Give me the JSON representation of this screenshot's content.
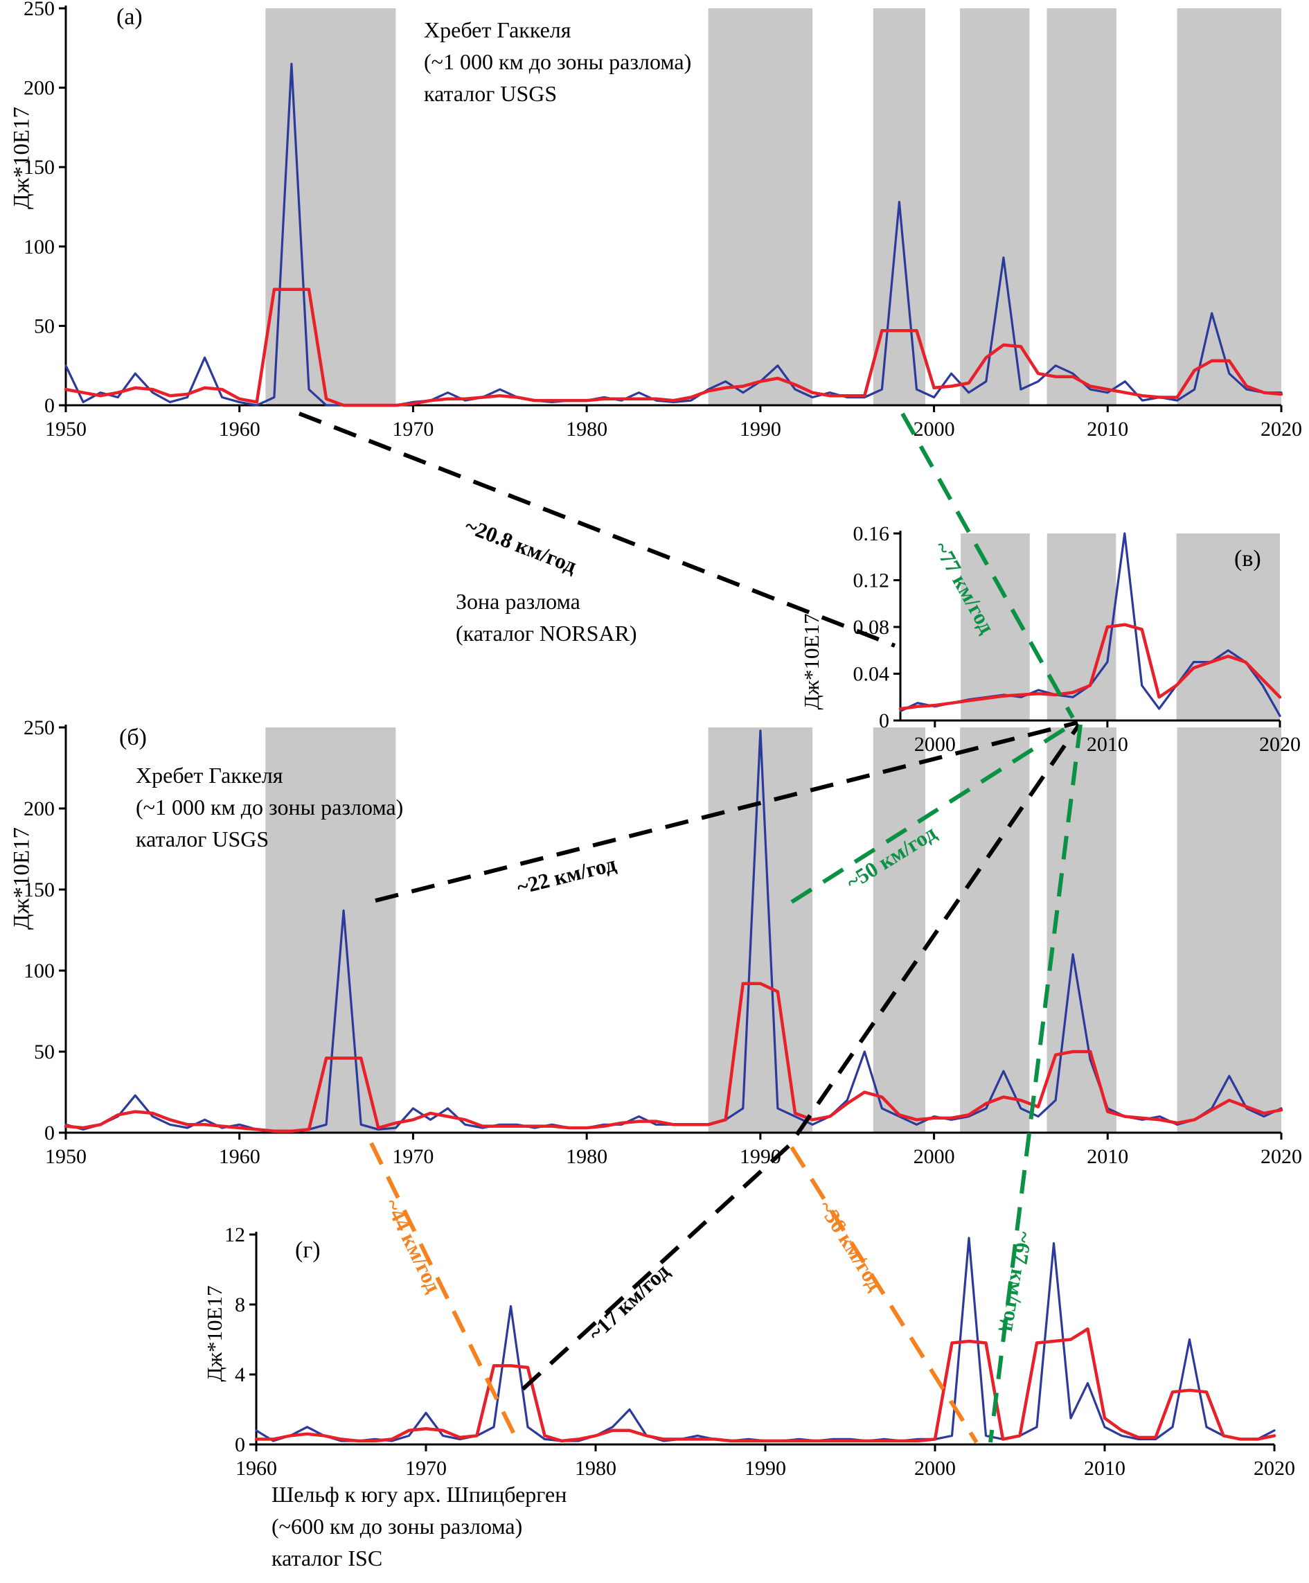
{
  "figure": {
    "colors": {
      "annual_line": "#2b3a9b",
      "smoothed_line": "#e8202a",
      "band": "#c8c8c8",
      "arrow_black": "#000000",
      "arrow_green": "#0a9144",
      "arrow_orange": "#f6821f"
    }
  },
  "chart_data": [
    {
      "id": "a",
      "type": "line",
      "panel_label": "(а)",
      "title_lines": [
        "Хребет Гаккеля",
        "(~1 000 км до зоны разлома)",
        "каталог USGS"
      ],
      "ylabel": "Дж*10E17",
      "x_start": 1950,
      "xlim": [
        1950,
        2020
      ],
      "x_ticks": [
        1950,
        1960,
        1970,
        1980,
        1990,
        2000,
        2010,
        2020
      ],
      "ylim": [
        0,
        250
      ],
      "y_ticks": [
        0,
        50,
        100,
        150,
        200,
        250
      ],
      "grid": false,
      "bands": [
        [
          1961.5,
          1969
        ],
        [
          1987,
          1993
        ],
        [
          1996.5,
          1999.5
        ],
        [
          2001.5,
          2005.5
        ],
        [
          2006.5,
          2010.5
        ],
        [
          2014,
          2020
        ]
      ],
      "series": [
        {
          "name": "annual",
          "color": "#2b3a9b",
          "values": [
            25,
            2,
            8,
            5,
            20,
            8,
            2,
            5,
            30,
            5,
            2,
            0,
            5,
            215,
            10,
            0,
            0,
            0,
            0,
            0,
            2,
            3,
            8,
            3,
            5,
            10,
            5,
            3,
            2,
            3,
            3,
            5,
            3,
            8,
            3,
            2,
            3,
            10,
            15,
            8,
            15,
            25,
            10,
            5,
            8,
            5,
            5,
            10,
            128,
            10,
            5,
            20,
            8,
            15,
            93,
            10,
            15,
            25,
            20,
            10,
            8,
            15,
            3,
            5,
            3,
            10,
            58,
            20,
            10,
            8,
            8
          ]
        },
        {
          "name": "smoothed",
          "color": "#e8202a",
          "values": [
            10,
            8,
            6,
            8,
            11,
            10,
            6,
            7,
            11,
            10,
            4,
            2,
            73,
            73,
            73,
            4,
            0,
            0,
            0,
            0,
            1,
            3,
            4,
            4,
            5,
            6,
            5,
            3,
            3,
            3,
            3,
            4,
            4,
            4,
            4,
            3,
            5,
            9,
            11,
            12,
            15,
            17,
            13,
            8,
            6,
            6,
            6,
            47,
            47,
            47,
            11,
            12,
            14,
            30,
            38,
            37,
            20,
            18,
            18,
            12,
            10,
            8,
            6,
            5,
            5,
            22,
            28,
            28,
            12,
            8,
            7
          ]
        }
      ]
    },
    {
      "id": "b",
      "type": "line",
      "panel_label": "(б)",
      "title_lines": [
        "Хребет Гаккеля",
        "(~1 000 км до зоны разлома)",
        "каталог USGS"
      ],
      "ylabel": "Дж*10E17",
      "x_start": 1950,
      "xlim": [
        1950,
        2020
      ],
      "x_ticks": [
        1950,
        1960,
        1970,
        1980,
        1990,
        2000,
        2010,
        2020
      ],
      "ylim": [
        0,
        250
      ],
      "y_ticks": [
        0,
        50,
        100,
        150,
        200,
        250
      ],
      "grid": false,
      "bands": [
        [
          1961.5,
          1969
        ],
        [
          1987,
          1993
        ],
        [
          1996.5,
          1999.5
        ],
        [
          2001.5,
          2005.5
        ],
        [
          2006.5,
          2010.5
        ],
        [
          2014,
          2020
        ]
      ],
      "series": [
        {
          "name": "annual",
          "color": "#2b3a9b",
          "values": [
            5,
            2,
            5,
            10,
            23,
            10,
            5,
            3,
            8,
            3,
            5,
            2,
            1,
            1,
            2,
            5,
            137,
            5,
            2,
            3,
            15,
            8,
            15,
            5,
            3,
            5,
            5,
            3,
            5,
            3,
            3,
            5,
            5,
            10,
            5,
            5,
            5,
            5,
            8,
            15,
            248,
            15,
            10,
            5,
            10,
            20,
            50,
            15,
            10,
            5,
            10,
            8,
            10,
            15,
            38,
            15,
            10,
            20,
            110,
            45,
            15,
            10,
            8,
            10,
            5,
            8,
            15,
            35,
            15,
            10,
            15
          ]
        },
        {
          "name": "smoothed",
          "color": "#e8202a",
          "values": [
            4,
            3,
            5,
            11,
            13,
            12,
            8,
            5,
            5,
            4,
            3,
            2,
            1,
            1,
            2,
            46,
            46,
            46,
            3,
            6,
            8,
            12,
            10,
            8,
            4,
            4,
            4,
            4,
            4,
            3,
            3,
            4,
            6,
            7,
            7,
            5,
            5,
            5,
            8,
            92,
            92,
            87,
            12,
            8,
            10,
            18,
            25,
            22,
            11,
            8,
            9,
            9,
            11,
            18,
            22,
            20,
            16,
            48,
            50,
            50,
            13,
            10,
            9,
            8,
            6,
            8,
            14,
            20,
            16,
            12,
            14
          ]
        }
      ]
    },
    {
      "id": "v",
      "type": "line",
      "panel_label": "(в)",
      "title_lines": [
        "Зона разлома",
        "(каталог NORSAR)"
      ],
      "ylabel": "Дж*10E17",
      "x_start": 1998,
      "xlim": [
        1998,
        2020
      ],
      "x_ticks": [
        2000,
        2010,
        2020
      ],
      "ylim": [
        0,
        0.16
      ],
      "y_ticks": [
        0,
        0.04,
        0.08,
        0.12,
        0.16
      ],
      "grid": false,
      "bands": [
        [
          2001.5,
          2005.5
        ],
        [
          2006.5,
          2010.5
        ],
        [
          2014,
          2020
        ]
      ],
      "series": [
        {
          "name": "annual",
          "color": "#2b3a9b",
          "values": [
            0.008,
            0.015,
            0.012,
            0.015,
            0.018,
            0.02,
            0.022,
            0.02,
            0.026,
            0.022,
            0.02,
            0.03,
            0.05,
            0.16,
            0.03,
            0.01,
            0.03,
            0.05,
            0.05,
            0.06,
            0.05,
            0.03,
            0.004
          ]
        },
        {
          "name": "smoothed",
          "color": "#e8202a",
          "values": [
            0.01,
            0.012,
            0.013,
            0.015,
            0.017,
            0.019,
            0.021,
            0.022,
            0.023,
            0.022,
            0.024,
            0.03,
            0.08,
            0.082,
            0.078,
            0.02,
            0.03,
            0.045,
            0.05,
            0.055,
            0.05,
            0.035,
            0.02
          ]
        }
      ]
    },
    {
      "id": "g",
      "type": "line",
      "panel_label": "(г)",
      "title_lines": [
        "Шельф к югу арх. Шпицберген",
        "(~600 км до зоны разлома)",
        "каталог ISC"
      ],
      "ylabel": "Дж*10E17",
      "x_start": 1960,
      "xlim": [
        1960,
        2020
      ],
      "x_ticks": [
        1960,
        1970,
        1980,
        1990,
        2000,
        2010,
        2020
      ],
      "ylim": [
        0,
        12
      ],
      "y_ticks": [
        0,
        4,
        8,
        12
      ],
      "grid": false,
      "bands": [],
      "series": [
        {
          "name": "annual",
          "color": "#2b3a9b",
          "values": [
            0.8,
            0.2,
            0.5,
            1.0,
            0.5,
            0.2,
            0.2,
            0.3,
            0.2,
            0.5,
            1.8,
            0.5,
            0.3,
            0.5,
            1.0,
            7.9,
            1.0,
            0.3,
            0.2,
            0.2,
            0.5,
            1.0,
            2.0,
            0.5,
            0.2,
            0.3,
            0.5,
            0.3,
            0.2,
            0.3,
            0.2,
            0.2,
            0.3,
            0.2,
            0.3,
            0.3,
            0.2,
            0.3,
            0.2,
            0.3,
            0.3,
            0.5,
            11.8,
            0.5,
            0.3,
            0.5,
            1.0,
            11.5,
            1.5,
            3.5,
            1.0,
            0.5,
            0.3,
            0.3,
            1.0,
            6.0,
            1.0,
            0.5,
            0.3,
            0.3,
            0.8
          ]
        },
        {
          "name": "smoothed",
          "color": "#e8202a",
          "values": [
            0.3,
            0.3,
            0.5,
            0.6,
            0.5,
            0.3,
            0.2,
            0.2,
            0.3,
            0.8,
            0.9,
            0.8,
            0.4,
            0.5,
            4.5,
            4.5,
            4.4,
            0.5,
            0.2,
            0.3,
            0.5,
            0.8,
            0.8,
            0.5,
            0.3,
            0.3,
            0.3,
            0.3,
            0.2,
            0.2,
            0.2,
            0.2,
            0.2,
            0.2,
            0.2,
            0.2,
            0.2,
            0.2,
            0.2,
            0.2,
            0.3,
            5.8,
            5.9,
            5.8,
            0.3,
            0.5,
            5.8,
            5.9,
            6.0,
            6.6,
            1.5,
            0.8,
            0.4,
            0.4,
            3.0,
            3.1,
            3.0,
            0.5,
            0.3,
            0.3,
            0.5
          ]
        }
      ]
    }
  ],
  "annotations": {
    "arrows": [
      {
        "id": "a63-to-v",
        "color": "#000000",
        "label": "~20.8 км/год"
      },
      {
        "id": "a98-to-v",
        "color": "#0a9144",
        "label": "~77 км/год"
      },
      {
        "id": "b66-to-v",
        "color": "#000000",
        "label": "~22 км/год"
      },
      {
        "id": "b90-to-v",
        "color": "#0a9144",
        "label": "~50 км/год"
      },
      {
        "id": "g75-to-v",
        "color": "#000000",
        "label": "~17 км/год"
      },
      {
        "id": "b66-to-g75",
        "color": "#f6821f",
        "label": "~44 км/год"
      },
      {
        "id": "b90-to-g02",
        "color": "#f6821f",
        "label": "~36 км/год"
      },
      {
        "id": "v-to-g03",
        "color": "#0a9144",
        "label": "~67 км/год"
      }
    ]
  }
}
